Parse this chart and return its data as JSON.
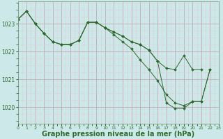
{
  "bg_color": "#cce8e8",
  "line_color": "#2d6a2d",
  "marker_color": "#2d6a2d",
  "xlabel": "Graphe pression niveau de la mer (hPa)",
  "xlim": [
    0,
    23
  ],
  "ylim": [
    1019.4,
    1023.8
  ],
  "yticks": [
    1020,
    1021,
    1022,
    1023
  ],
  "xticks": [
    0,
    1,
    2,
    3,
    4,
    5,
    6,
    7,
    8,
    9,
    10,
    11,
    12,
    13,
    14,
    15,
    16,
    17,
    18,
    19,
    20,
    21,
    22,
    23
  ],
  "line1": [
    1023.15,
    1023.45,
    1023.0,
    1022.65,
    1022.35,
    1022.25,
    1022.25,
    1022.4,
    1023.05,
    1023.05,
    1022.85,
    1022.7,
    1022.55,
    1022.35,
    1022.25,
    1022.05,
    1021.65,
    1021.4,
    1021.35,
    1021.85,
    1021.35,
    1021.35,
    null,
    null
  ],
  "line2": [
    1023.15,
    1023.45,
    1023.0,
    1022.65,
    1022.35,
    1022.25,
    1022.25,
    1022.4,
    1023.05,
    1023.05,
    1022.85,
    1022.7,
    1022.55,
    1022.35,
    1022.25,
    1022.05,
    1021.65,
    1020.15,
    1019.95,
    1019.95,
    1020.2,
    1020.2,
    1021.35,
    null
  ],
  "line3": [
    1023.15,
    1023.45,
    1023.0,
    1022.65,
    1022.35,
    1022.25,
    1022.25,
    1022.4,
    1023.05,
    1023.05,
    1022.85,
    1022.6,
    1022.35,
    1022.1,
    1021.7,
    1021.35,
    1020.95,
    1020.45,
    1020.15,
    1020.05,
    1020.2,
    1020.2,
    1021.35,
    null
  ]
}
